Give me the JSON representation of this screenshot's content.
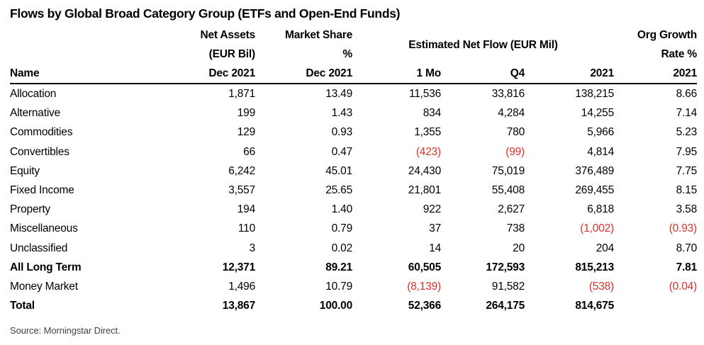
{
  "title": "Flows by Global Broad Category Group (ETFs and Open-End Funds)",
  "source": "Source: Morningstar Direct.",
  "colors": {
    "negative": "#d8312a",
    "text": "#000000",
    "header_rule": "#000000",
    "source_text": "#404040"
  },
  "chart_data": {
    "type": "table",
    "title": "Flows by Global Broad Category Group (ETFs and Open-End Funds)",
    "source": "Source: Morningstar Direct.",
    "column_groups": {
      "net_assets": [
        "Net Assets",
        "(EUR Bil)"
      ],
      "market_share": [
        "Market Share",
        "%"
      ],
      "flow_group": "Estimated Net Flow (EUR Mil)",
      "org_growth": [
        "Org Growth",
        "Rate %"
      ]
    },
    "column_headers": [
      "Name",
      "Dec 2021",
      "Dec 2021",
      "1 Mo",
      "Q4",
      "2021",
      "2021"
    ],
    "rows": [
      {
        "name": "Allocation",
        "bold": false,
        "values": [
          "1,871",
          "13.49",
          "11,536",
          "33,816",
          "138,215",
          "8.66"
        ]
      },
      {
        "name": "Alternative",
        "bold": false,
        "values": [
          "199",
          "1.43",
          "834",
          "4,284",
          "14,255",
          "7.14"
        ]
      },
      {
        "name": "Commodities",
        "bold": false,
        "values": [
          "129",
          "0.93",
          "1,355",
          "780",
          "5,966",
          "5.23"
        ]
      },
      {
        "name": "Convertibles",
        "bold": false,
        "values": [
          "66",
          "0.47",
          "(423)",
          "(99)",
          "4,814",
          "7.95"
        ]
      },
      {
        "name": "Equity",
        "bold": false,
        "values": [
          "6,242",
          "45.01",
          "24,430",
          "75,019",
          "376,489",
          "7.75"
        ]
      },
      {
        "name": "Fixed Income",
        "bold": false,
        "values": [
          "3,557",
          "25.65",
          "21,801",
          "55,408",
          "269,455",
          "8.15"
        ]
      },
      {
        "name": "Property",
        "bold": false,
        "values": [
          "194",
          "1.40",
          "922",
          "2,627",
          "6,818",
          "3.58"
        ]
      },
      {
        "name": "Miscellaneous",
        "bold": false,
        "values": [
          "110",
          "0.79",
          "37",
          "738",
          "(1,002)",
          "(0.93)"
        ]
      },
      {
        "name": "Unclassified",
        "bold": false,
        "values": [
          "3",
          "0.02",
          "14",
          "20",
          "204",
          "8.70"
        ]
      },
      {
        "name": "All Long Term",
        "bold": true,
        "values": [
          "12,371",
          "89.21",
          "60,505",
          "172,593",
          "815,213",
          "7.81"
        ]
      },
      {
        "name": "Money Market",
        "bold": false,
        "values": [
          "1,496",
          "10.79",
          "(8,139)",
          "91,582",
          "(538)",
          "(0.04)"
        ]
      },
      {
        "name": "Total",
        "bold": true,
        "values": [
          "13,867",
          "100.00",
          "52,366",
          "264,175",
          "814,675",
          ""
        ]
      }
    ],
    "negative_style": "red text in parentheses"
  }
}
